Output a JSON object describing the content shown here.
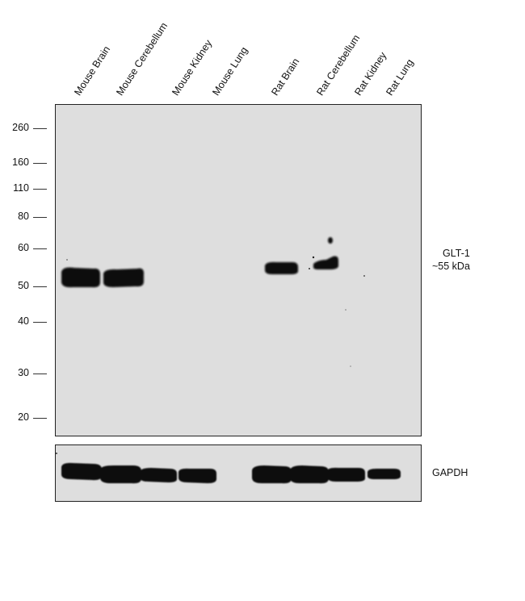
{
  "lanes": [
    {
      "label": "Mouse Brain"
    },
    {
      "label": "Mouse Cerebellum"
    },
    {
      "label": "Mouse Kidney"
    },
    {
      "label": "Mouse Lung"
    },
    {
      "label": "Rat Brain"
    },
    {
      "label": "Rat Cerebellum"
    },
    {
      "label": "Rat Kidney"
    },
    {
      "label": "Rat Lung"
    }
  ],
  "mw_markers": [
    "260",
    "160",
    "110",
    "80",
    "60",
    "50",
    "40",
    "30",
    "20"
  ],
  "main_blot": {
    "target_label_line1": "GLT-1",
    "target_label_line2": "~55 kDa",
    "bands_present": [
      true,
      true,
      false,
      false,
      true,
      true,
      false,
      false
    ]
  },
  "loading_control": {
    "label": "GAPDH",
    "bands_present": [
      true,
      true,
      true,
      true,
      true,
      true,
      true,
      true
    ]
  },
  "colors": {
    "membrane": "#dedede",
    "band": "#0a0a0a",
    "border": "#222222"
  }
}
